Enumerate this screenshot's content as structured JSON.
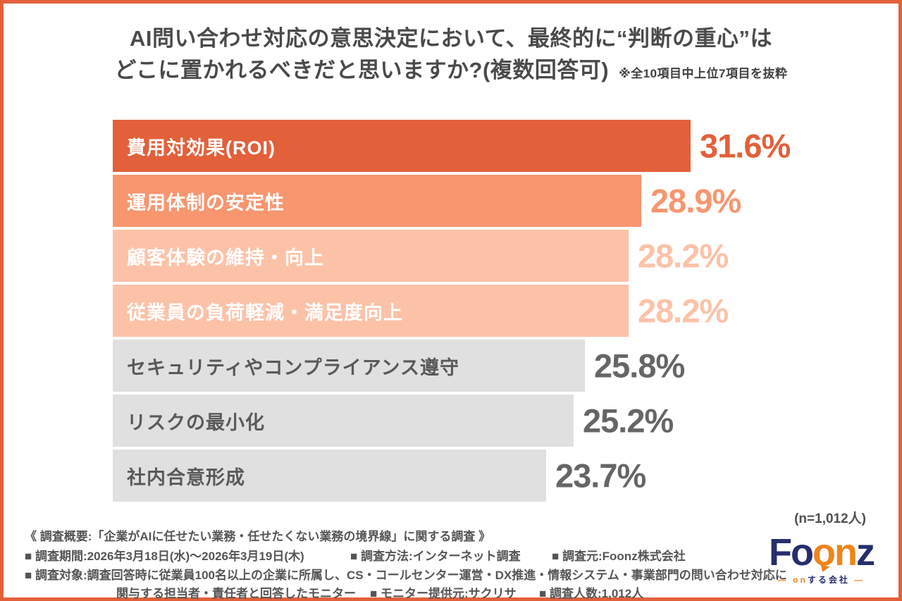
{
  "frame": {
    "border_color": "#E2613B",
    "background": "#FFFFFF"
  },
  "title": {
    "line1": "AI問い合わせ対応の意思決定において、最終的に“判断の重心”は",
    "line2": "どこに置かれるべきだと思いますか?(複数回答可)",
    "note": "※全10項目中上位7項目を抜粋"
  },
  "chart_data": {
    "type": "bar",
    "orientation": "horizontal",
    "unit": "%",
    "xlim": [
      0,
      34
    ],
    "grid": false,
    "legend": false,
    "categories": [
      "費用対効果(ROI)",
      "運用体制の安定性",
      "顧客体験の維持・向上",
      "従業員の負荷軽減・満足度向上",
      "セキュリティやコンプライアンス遵守",
      "リスクの最小化",
      "社内合意形成"
    ],
    "values": [
      31.6,
      28.9,
      28.2,
      28.2,
      25.8,
      25.2,
      23.7
    ],
    "value_labels": [
      "31.6%",
      "28.9%",
      "28.2%",
      "28.2%",
      "25.8%",
      "25.2%",
      "23.7%"
    ],
    "bar_colors": [
      "#E2603A",
      "#F7966F",
      "#FCC2A8",
      "#FCC2A8",
      "#E0E0E0",
      "#E0E0E0",
      "#E0E0E0"
    ],
    "label_text_colors": [
      "#FFFFFF",
      "#FFFFFF",
      "#FFFFFF",
      "#FFFFFF",
      "#595959",
      "#595959",
      "#595959"
    ],
    "value_text_colors": [
      "#E2603A",
      "#F7966F",
      "#FCC2A8",
      "#FCC2A8",
      "#666666",
      "#666666",
      "#666666"
    ]
  },
  "sample_note": "(n=1,012人)",
  "footer": {
    "line1": "《 調査概要:「企業がAIに任せたい業務・任せたくない業務の境界線」に関する調査 》",
    "line2_items": [
      "■ 調査期間:2026年3月18日(水)〜2026年3月19日(木)",
      "■ 調査方法:インターネット調査",
      "■ 調査元:Foonz株式会社"
    ],
    "line3": "■ 調査対象:調査回答時に従業員100名以上の企業に所属し、CS・コールセンター運営・DX推進・情報システム・事業部門の問い合わせ対応に",
    "line4_items": [
      "関与する担当者・責任者と回答したモニター",
      "■ モニター提供元:サクリサ",
      "■ 調査人数:1,012人"
    ]
  },
  "logo": {
    "navy": "#262E6C",
    "orange": "#F0841A",
    "segments": [
      {
        "text": "Fo",
        "color": "navy"
      },
      {
        "text": "on",
        "color": "orange",
        "tail": true
      },
      {
        "text": "z",
        "color": "navy"
      }
    ],
    "tagline_segments": [
      {
        "text": "— on",
        "color": "orange"
      },
      {
        "text": "する会社",
        "color": "navy"
      },
      {
        "text": " —",
        "color": "orange"
      }
    ]
  }
}
